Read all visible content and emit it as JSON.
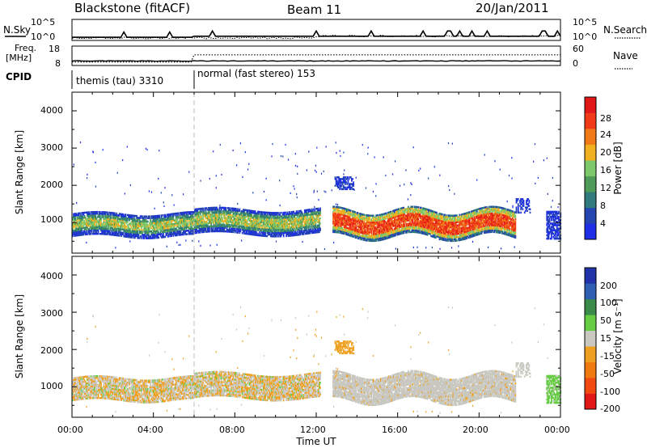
{
  "header": {
    "station": "Blackstone (fitACF)",
    "beam": "Beam 11",
    "date": "20/Jan/2011"
  },
  "top_panels": {
    "nsky": {
      "left_label": "N.Sky",
      "left_ticks": [
        "10^5",
        "10^0"
      ],
      "right_ticks": [
        "10^5",
        "10^0"
      ],
      "right_label": "N.Search"
    },
    "freq": {
      "left_label_line1": "Freq.",
      "left_label_line2": "[MHz]",
      "left_ticks": [
        "18",
        "8"
      ],
      "right_ticks": [
        "60",
        "0"
      ],
      "right_label": "Nave"
    },
    "cpid": {
      "label": "CPID",
      "segments": [
        {
          "label": "themis (tau) 3310",
          "start_hour": 0
        },
        {
          "label": "normal (fast stereo) 153",
          "start_hour": 6
        }
      ]
    }
  },
  "colors": {
    "power": [
      "#1f2fe6",
      "#2444b0",
      "#2f7a7a",
      "#4e9a58",
      "#7cc86a",
      "#f0b020",
      "#f07a18",
      "#f03a18",
      "#e01818"
    ],
    "velocity": [
      "#2233aa",
      "#2f5fb3",
      "#3a8a4a",
      "#66cc44",
      "#c8c8c0",
      "#f0a020",
      "#f07a10",
      "#f04a10",
      "#e01818"
    ],
    "scatter_gray": "#c8c8c0",
    "scatter_orange": "#f0a020",
    "scatter_green": "#66cc44"
  },
  "panel_power": {
    "ylabel": "Slant Range [km]",
    "yticks": [
      "4000",
      "3000",
      "2000",
      "1000"
    ],
    "colorbar": {
      "label": "Power [dB]",
      "ticks": [
        "28",
        "24",
        "20",
        "16",
        "12",
        "8",
        "4"
      ]
    }
  },
  "panel_velocity": {
    "ylabel": "Slant Range [km]",
    "yticks": [
      "4000",
      "3000",
      "2000",
      "1000"
    ],
    "colorbar": {
      "label": "Velocity [m s⁻¹]",
      "ticks": [
        "200",
        "100",
        "50",
        "15",
        "-15",
        "-50",
        "-100",
        "-200"
      ]
    }
  },
  "xaxis": {
    "label": "Time UT",
    "ticks": [
      "00:00",
      "04:00",
      "08:00",
      "12:00",
      "16:00",
      "20:00",
      "00:00"
    ]
  },
  "chart_data": {
    "type": "heatmap",
    "title": "Blackstone (fitACF)",
    "x": {
      "label": "Time UT",
      "range_hours": [
        0,
        24
      ],
      "tick_labels": [
        "00:00",
        "04:00",
        "08:00",
        "12:00",
        "16:00",
        "20:00",
        "00:00"
      ]
    },
    "y": {
      "label": "Slant Range [km]",
      "range": [
        180,
        4500
      ],
      "tick_values": [
        1000,
        2000,
        3000,
        4000
      ]
    },
    "panels": [
      {
        "name": "Power",
        "colorbar_label": "Power [dB]",
        "colorbar_ticks": [
          4,
          8,
          12,
          16,
          20,
          24,
          28
        ],
        "scatter_features": [
          {
            "hours": [
              0,
              6
            ],
            "range_km": [
              650,
              1200
            ],
            "power_db": "8-20"
          },
          {
            "hours": [
              6,
              12.2
            ],
            "range_km": [
              700,
              1300
            ],
            "power_db": "8-20"
          },
          {
            "hours": [
              12.8,
              21.8
            ],
            "range_km": [
              700,
              1350
            ],
            "power_db": "12-30"
          },
          {
            "hours": [
              13,
              13.8
            ],
            "range_km": [
              1900,
              2200
            ],
            "power_db": "4-12"
          },
          {
            "hours": [
              23.3,
              24
            ],
            "range_km": [
              600,
              1300
            ],
            "power_db": "4-12"
          }
        ]
      },
      {
        "name": "Velocity",
        "colorbar_label": "Velocity [m s⁻¹]",
        "colorbar_ticks": [
          -200,
          -100,
          -50,
          -15,
          15,
          50,
          100,
          200
        ],
        "scatter_features": [
          {
            "hours": [
              0,
              12.2
            ],
            "range_km": [
              650,
              1300
            ],
            "velocity_ms": "-50 to 15"
          },
          {
            "hours": [
              12.8,
              21.8
            ],
            "range_km": [
              700,
              1350
            ],
            "velocity_ms": "-15 to 15"
          },
          {
            "hours": [
              23.3,
              24
            ],
            "range_km": [
              600,
              1200
            ],
            "velocity_ms": "50 to 100"
          }
        ]
      }
    ],
    "parameters": {
      "nsky_range": [
        1,
        100000
      ],
      "freq_mhz_range": [
        8,
        18
      ],
      "nave_range": [
        0,
        60
      ],
      "cpid_changes": [
        {
          "hour": 0,
          "cpid": 3310
        },
        {
          "hour": 6,
          "cpid": 153
        }
      ]
    }
  }
}
